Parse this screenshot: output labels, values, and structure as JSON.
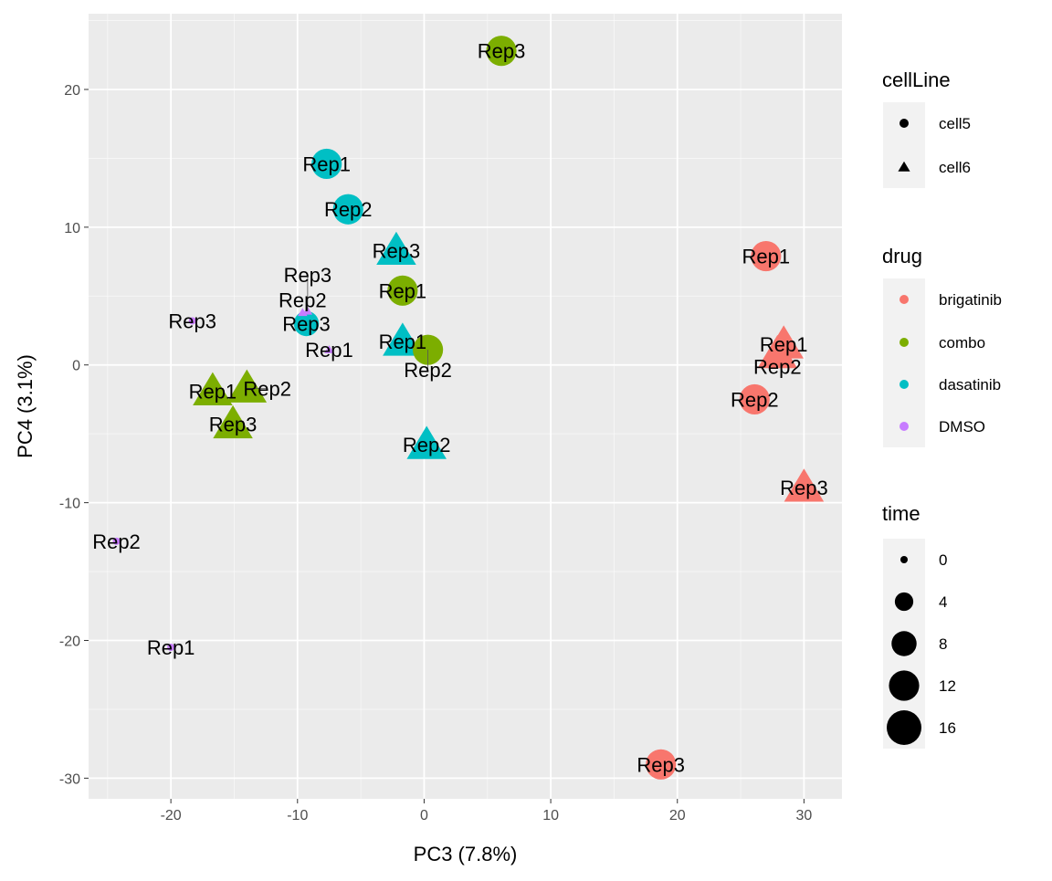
{
  "chart_data": {
    "type": "scatter",
    "xlabel": "PC3 (7.8%)",
    "ylabel": "PC4 (3.1%)",
    "xlim": [
      -26.5,
      33
    ],
    "ylim": [
      -31.5,
      25.5
    ],
    "xticks": [
      -20,
      -10,
      0,
      10,
      20,
      30
    ],
    "yticks": [
      -30,
      -20,
      -10,
      0,
      10,
      20
    ],
    "grid": true,
    "legend_position": "right",
    "colors": {
      "brigatinib": "#F8766D",
      "combo": "#7CAE00",
      "dasatinib": "#00BFC4",
      "DMSO": "#C77CFF"
    },
    "legends": [
      {
        "title": "cellLine",
        "type": "shape",
        "items": [
          {
            "label": "cell5",
            "shape": "circle"
          },
          {
            "label": "cell6",
            "shape": "triangle"
          }
        ]
      },
      {
        "title": "drug",
        "type": "color",
        "items": [
          {
            "label": "brigatinib"
          },
          {
            "label": "combo"
          },
          {
            "label": "dasatinib"
          },
          {
            "label": "DMSO"
          }
        ]
      },
      {
        "title": "time",
        "type": "size",
        "items": [
          {
            "label": "0",
            "value": 0
          },
          {
            "label": "4",
            "value": 4
          },
          {
            "label": "8",
            "value": 8
          },
          {
            "label": "12",
            "value": 12
          },
          {
            "label": "16",
            "value": 16
          }
        ]
      }
    ],
    "points": [
      {
        "x": 6.1,
        "y": 22.8,
        "drug": "combo",
        "cellLine": "cell5",
        "time": 12,
        "label": "Rep3"
      },
      {
        "x": -7.7,
        "y": 14.6,
        "drug": "dasatinib",
        "cellLine": "cell5",
        "time": 12,
        "label": "Rep1"
      },
      {
        "x": -6.0,
        "y": 11.3,
        "drug": "dasatinib",
        "cellLine": "cell5",
        "time": 12,
        "label": "Rep2"
      },
      {
        "x": -9.3,
        "y": 3.0,
        "drug": "dasatinib",
        "cellLine": "cell5",
        "time": 8,
        "label": "Rep3"
      },
      {
        "x": -2.2,
        "y": 8.3,
        "drug": "dasatinib",
        "cellLine": "cell6",
        "time": 12,
        "label": "Rep3"
      },
      {
        "x": -1.7,
        "y": 1.7,
        "drug": "dasatinib",
        "cellLine": "cell6",
        "time": 12,
        "label": "Rep1"
      },
      {
        "x": 0.2,
        "y": -5.8,
        "drug": "dasatinib",
        "cellLine": "cell6",
        "time": 12,
        "label": "Rep2"
      },
      {
        "x": -1.7,
        "y": 5.4,
        "drug": "combo",
        "cellLine": "cell5",
        "time": 12,
        "label": "Rep1"
      },
      {
        "x": 0.3,
        "y": 1.1,
        "drug": "combo",
        "cellLine": "cell5",
        "time": 12,
        "label": "Rep2"
      },
      {
        "x": -16.7,
        "y": -1.9,
        "drug": "combo",
        "cellLine": "cell6",
        "time": 12,
        "label": "Rep1"
      },
      {
        "x": -14.0,
        "y": -1.7,
        "drug": "combo",
        "cellLine": "cell6",
        "time": 12,
        "label": "Rep2"
      },
      {
        "x": -15.1,
        "y": -4.3,
        "drug": "combo",
        "cellLine": "cell6",
        "time": 12,
        "label": "Rep3"
      },
      {
        "x": -18.3,
        "y": 3.2,
        "drug": "DMSO",
        "cellLine": "cell5",
        "time": 0,
        "label": "Rep3"
      },
      {
        "x": -24.3,
        "y": -12.8,
        "drug": "DMSO",
        "cellLine": "cell5",
        "time": 0,
        "label": "Rep2"
      },
      {
        "x": -20.0,
        "y": -20.5,
        "drug": "DMSO",
        "cellLine": "cell5",
        "time": 0,
        "label": "Rep1"
      },
      {
        "x": -9.6,
        "y": 3.8,
        "drug": "DMSO",
        "cellLine": "cell6",
        "time": 0,
        "label": "Rep2"
      },
      {
        "x": -9.2,
        "y": 3.9,
        "drug": "DMSO",
        "cellLine": "cell6",
        "time": 0,
        "label": "Rep3"
      },
      {
        "x": -7.5,
        "y": 1.1,
        "drug": "DMSO",
        "cellLine": "cell6",
        "time": 0,
        "label": "Rep1"
      },
      {
        "x": 27.0,
        "y": 7.9,
        "drug": "brigatinib",
        "cellLine": "cell5",
        "time": 12,
        "label": "Rep1"
      },
      {
        "x": 26.1,
        "y": -2.5,
        "drug": "brigatinib",
        "cellLine": "cell5",
        "time": 12,
        "label": "Rep2"
      },
      {
        "x": 18.7,
        "y": -29.0,
        "drug": "brigatinib",
        "cellLine": "cell5",
        "time": 12,
        "label": "Rep3"
      },
      {
        "x": 28.4,
        "y": 1.5,
        "drug": "brigatinib",
        "cellLine": "cell6",
        "time": 12,
        "label": "Rep1"
      },
      {
        "x": 27.9,
        "y": 0.8,
        "drug": "brigatinib",
        "cellLine": "cell6",
        "time": 12,
        "label": "Rep2"
      },
      {
        "x": 30.0,
        "y": -8.9,
        "drug": "brigatinib",
        "cellLine": "cell6",
        "time": 12,
        "label": "Rep3"
      }
    ]
  }
}
